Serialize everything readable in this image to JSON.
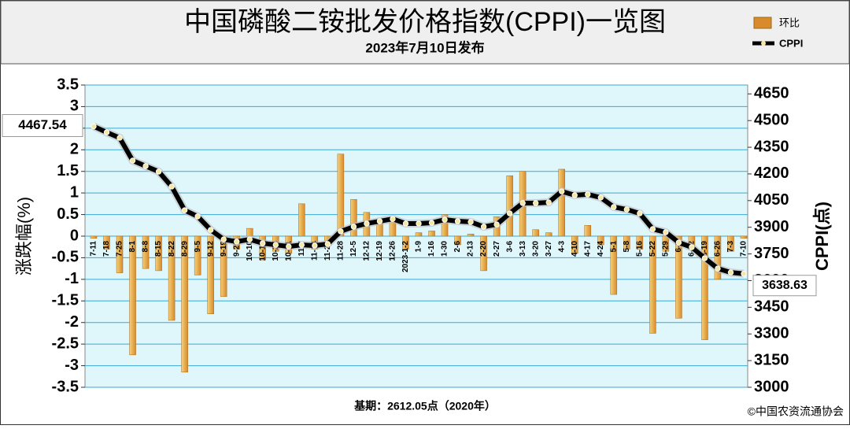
{
  "chart_data": {
    "type": "bar-line",
    "title": "中国磷酸二铵批发价格指数(CPPI)一览图",
    "subtitle": "2023年7月10日发布",
    "y_label": "涨跌幅(%)",
    "y2_label": "CPPI(点)",
    "footnote": "基期：2612.05点（2020年）",
    "source": "©中国农资流通协会",
    "categories": [
      "7-11",
      "7-18",
      "7-25",
      "8-1",
      "8-8",
      "8-15",
      "8-22",
      "8-29",
      "9-5",
      "9-12",
      "9-19",
      "9-26",
      "10-10",
      "10-17",
      "10-24",
      "10-31",
      "11-7",
      "11-14",
      "11-21",
      "11-28",
      "12-5",
      "12-12",
      "12-19",
      "12-26",
      "2023-1-2",
      "1-9",
      "1-16",
      "1-30",
      "2-6",
      "2-13",
      "2-20",
      "2-27",
      "3-6",
      "3-13",
      "3-20",
      "3-27",
      "4-3",
      "4-10",
      "4-17",
      "4-24",
      "5-1",
      "5-8",
      "5-16",
      "5-22",
      "5-29",
      "6-5",
      "6-12",
      "6-19",
      "6-26",
      "7-3",
      "7-10"
    ],
    "series": [
      {
        "name": "环比",
        "kind": "bar",
        "color": "#d98a2b",
        "values": [
          -0.05,
          -0.3,
          -0.85,
          -2.75,
          -0.75,
          -0.8,
          -1.95,
          -3.15,
          -0.9,
          -1.8,
          -1.4,
          -0.3,
          0.18,
          -0.55,
          -0.35,
          -0.4,
          0.75,
          -0.3,
          -0.1,
          1.9,
          0.85,
          0.55,
          0.35,
          0.4,
          -0.3,
          0.08,
          0.12,
          0.5,
          -0.2,
          0.05,
          -0.8,
          0.45,
          1.4,
          1.5,
          0.15,
          0.08,
          1.55,
          -0.4,
          0.25,
          -0.2,
          -1.35,
          -0.3,
          -0.3,
          -2.25,
          -0.35,
          -1.9,
          -0.3,
          -2.4,
          -1.0,
          -0.35,
          -0.05
        ]
      },
      {
        "name": "CPPI",
        "kind": "line",
        "axis": "y2",
        "color": "#000000",
        "values": [
          4467.54,
          4434,
          4403,
          4275,
          4244,
          4213,
          4129,
          3996,
          3961,
          3885,
          3832,
          3819,
          3832,
          3810,
          3801,
          3792,
          3801,
          3797,
          3806,
          3877,
          3903,
          3921,
          3934,
          3947,
          3921,
          3921,
          3925,
          3943,
          3934,
          3930,
          3903,
          3916,
          3978,
          4036,
          4036,
          4040,
          4102,
          4080,
          4085,
          4067,
          4014,
          4000,
          3978,
          3890,
          3872,
          3814,
          3788,
          3726,
          3668,
          3646,
          3638.63
        ]
      }
    ],
    "ylim": [
      -3.5,
      3.5
    ],
    "yticks": [
      3.5,
      3,
      2.5,
      2,
      1.5,
      1,
      0.5,
      0,
      -0.5,
      -1,
      -1.5,
      -2,
      -2.5,
      -3,
      -3.5
    ],
    "y2lim": [
      3000,
      4700
    ],
    "y2ticks": [
      4650,
      4500,
      4350,
      4200,
      4050,
      3900,
      3750,
      3600,
      3450,
      3300,
      3150,
      3000
    ],
    "grid": true
  }
}
